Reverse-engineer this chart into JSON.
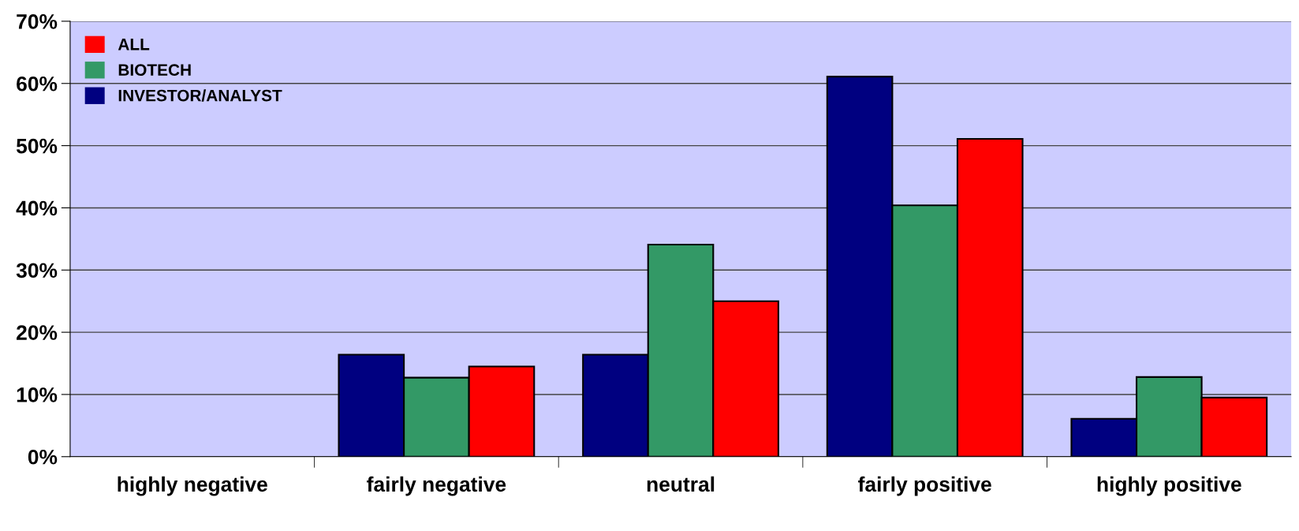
{
  "chart_data": {
    "type": "bar",
    "categories": [
      "highly negative",
      "fairly negative",
      "neutral",
      "fairly positive",
      "highly positive"
    ],
    "series": [
      {
        "name": "INVESTOR/ANALYST",
        "color": "#000080",
        "values": [
          null,
          16.4,
          16.4,
          61.1,
          6.1
        ]
      },
      {
        "name": "BIOTECH",
        "color": "#339966",
        "values": [
          null,
          12.7,
          34.1,
          40.4,
          12.8
        ]
      },
      {
        "name": "ALL",
        "color": "#ff0000",
        "values": [
          null,
          14.5,
          25.0,
          51.1,
          9.5
        ]
      }
    ],
    "ylim": [
      0,
      70
    ],
    "yticks": [
      {
        "value": 0,
        "label": "0%"
      },
      {
        "value": 10,
        "label": "10%"
      },
      {
        "value": 20,
        "label": "20%"
      },
      {
        "value": 30,
        "label": "30%"
      },
      {
        "value": 40,
        "label": "40%"
      },
      {
        "value": 50,
        "label": "50%"
      },
      {
        "value": 60,
        "label": "60%"
      },
      {
        "value": 70,
        "label": "70%"
      }
    ],
    "grid": "y",
    "legend": "top left"
  }
}
